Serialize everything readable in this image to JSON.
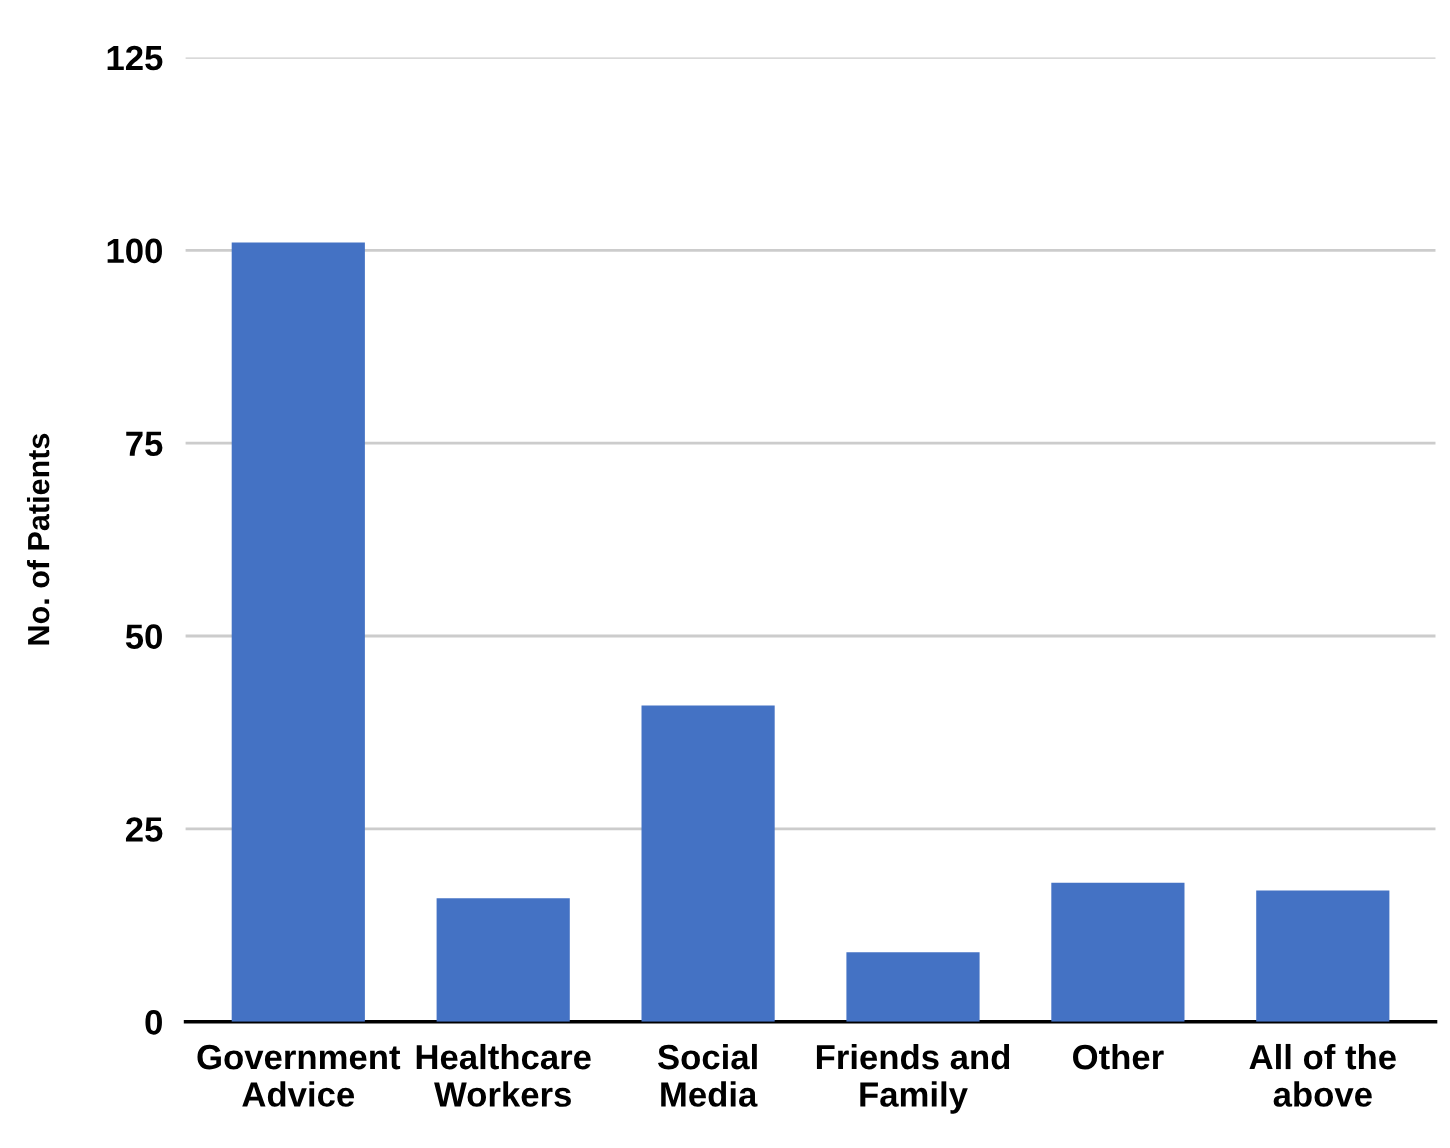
{
  "chart_data": {
    "type": "bar",
    "ylabel": "No. of Patients",
    "categories": [
      "Government\nAdvice",
      "Healthcare\nWorkers",
      "Social\nMedia",
      "Friends and\nFamily",
      "Other",
      "All of the\nabove"
    ],
    "values": [
      101,
      16,
      41,
      9,
      18,
      17
    ],
    "color": "#4472c4",
    "ylim": [
      0,
      125
    ],
    "yticks": [
      0,
      25,
      50,
      75,
      100,
      125
    ],
    "grid": "y"
  }
}
